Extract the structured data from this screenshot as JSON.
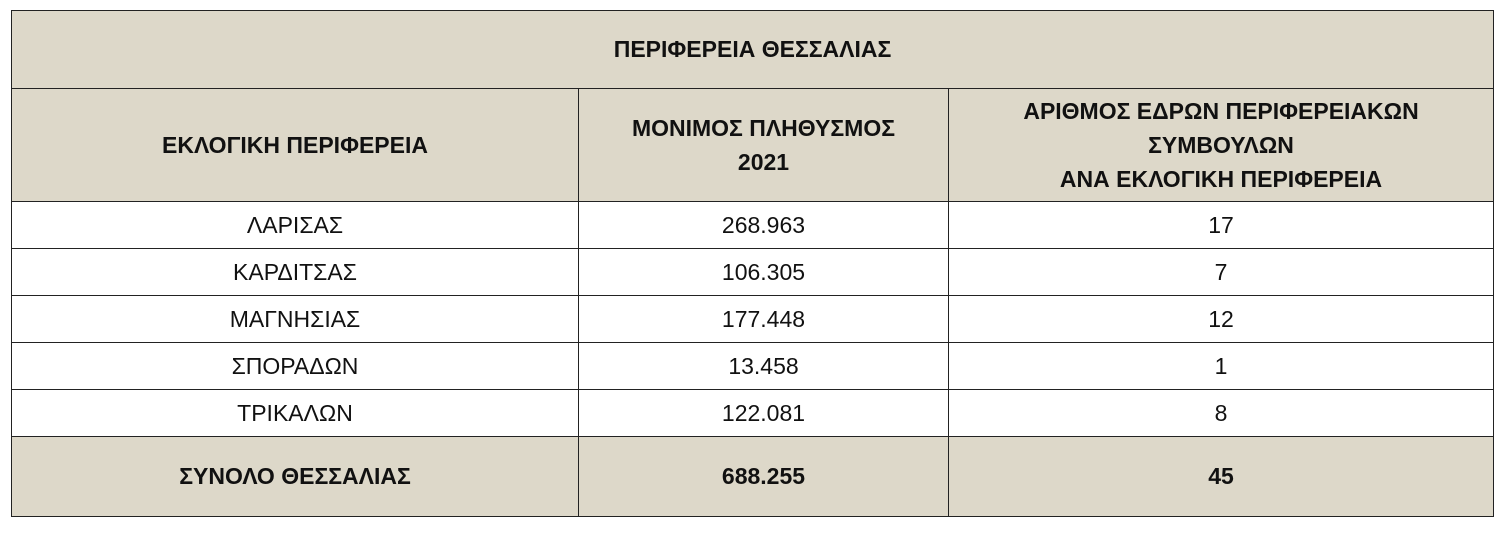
{
  "table": {
    "title": "ΠΕΡΙΦΕΡΕΙΑ ΘΕΣΣΑΛΙΑΣ",
    "headers": {
      "region": "ΕΚΛΟΓΙΚΗ ΠΕΡΙΦΕΡΕΙΑ",
      "population_line1": "ΜΟΝΙΜΟΣ ΠΛΗΘΥΣΜΟΣ",
      "population_line2": "2021",
      "seats_line1": "ΑΡΙΘΜΟΣ ΕΔΡΩΝ ΠΕΡΙΦΕΡΕΙΑΚΩΝ",
      "seats_line2": "ΣΥΜΒΟΥΛΩΝ",
      "seats_line3": "ΑΝΑ ΕΚΛΟΓΙΚΗ ΠΕΡΙΦΕΡΕΙΑ"
    },
    "rows": [
      {
        "region": "ΛΑΡΙΣΑΣ",
        "population": "268.963",
        "seats": "17"
      },
      {
        "region": "ΚΑΡΔΙΤΣΑΣ",
        "population": "106.305",
        "seats": "7"
      },
      {
        "region": "ΜΑΓΝΗΣΙΑΣ",
        "population": "177.448",
        "seats": "12"
      },
      {
        "region": "ΣΠΟΡΑΔΩΝ",
        "population": "13.458",
        "seats": "1"
      },
      {
        "region": "ΤΡΙΚΑΛΩΝ",
        "population": "122.081",
        "seats": "8"
      }
    ],
    "total": {
      "label": "ΣΥΝΟΛΟ ΘΕΣΣΑΛΙΑΣ",
      "population": "688.255",
      "seats": "45"
    },
    "colors": {
      "header_background": "#ddd8c9",
      "body_background": "#ffffff",
      "border": "#222222"
    }
  }
}
